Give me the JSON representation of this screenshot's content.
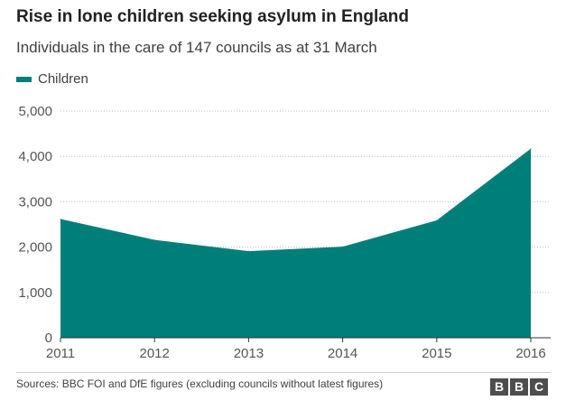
{
  "chart_data": {
    "type": "area",
    "title": "Rise in lone children seeking asylum in England",
    "subtitle": "Individuals in the care of 147 councils as at 31 March",
    "categories": [
      "2011",
      "2012",
      "2013",
      "2014",
      "2015",
      "2016"
    ],
    "series": [
      {
        "name": "Children",
        "values": [
          2620,
          2160,
          1910,
          2010,
          2590,
          4170
        ],
        "color": "#007f7a"
      }
    ],
    "ylim": [
      0,
      5000
    ],
    "yticks": [
      0,
      1000,
      2000,
      3000,
      4000,
      5000
    ],
    "ytick_labels": [
      "0",
      "1,000",
      "2,000",
      "3,000",
      "4,000",
      "5,000"
    ],
    "xlabel": "",
    "ylabel": "",
    "grid": "horizontal dotted",
    "legend_position": "top-left"
  },
  "footer": {
    "source": "Sources: BBC FOI and DfE figures (excluding councils without latest figures)",
    "logo_letters": [
      "B",
      "B",
      "C"
    ]
  }
}
